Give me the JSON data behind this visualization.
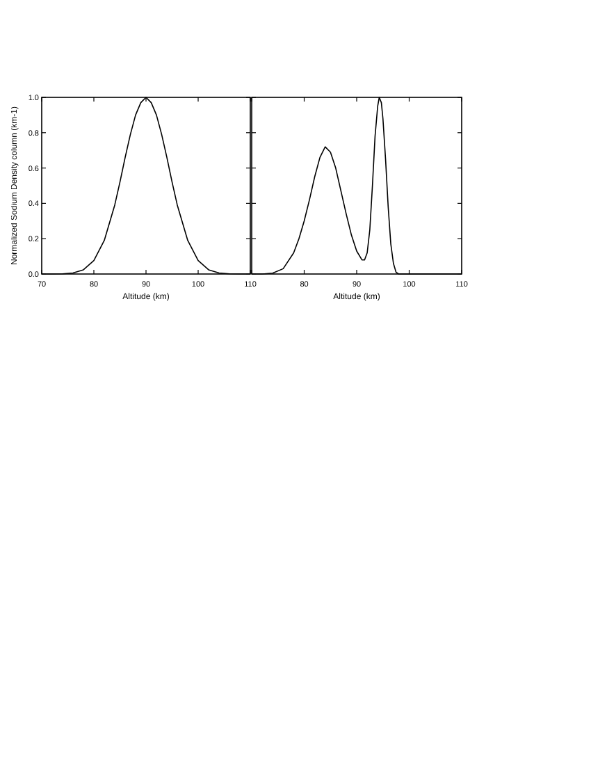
{
  "chart_data": [
    {
      "type": "line",
      "xlabel": "Altitude (km)",
      "ylabel": "Normalized Sodium Density column (km-1)",
      "xlim": [
        70,
        110
      ],
      "ylim": [
        0,
        1
      ],
      "xticks": [
        70,
        80,
        90,
        100,
        110
      ],
      "yticks": [
        {
          "value": 0,
          "label": "0.0"
        },
        0.2,
        0.4,
        0.6,
        0.8,
        {
          "value": 1,
          "label": "1.0"
        }
      ],
      "series": [
        {
          "color": "#000000",
          "x": [
            70,
            72,
            74,
            76,
            78,
            80,
            82,
            84,
            85,
            86,
            87,
            88,
            89,
            90,
            91,
            92,
            93,
            94,
            95,
            96,
            98,
            100,
            102,
            104,
            106,
            108,
            110
          ],
          "values": [
            0,
            0,
            0.001,
            0.006,
            0.024,
            0.076,
            0.19,
            0.39,
            0.52,
            0.66,
            0.79,
            0.9,
            0.97,
            1,
            0.97,
            0.9,
            0.79,
            0.66,
            0.52,
            0.39,
            0.19,
            0.076,
            0.024,
            0.006,
            0.001,
            0,
            0
          ]
        }
      ]
    },
    {
      "type": "line",
      "xlabel": "Altitude (km)",
      "xlim": [
        70,
        110
      ],
      "ylim": [
        0,
        1
      ],
      "xticks": [
        {
          "value": 70,
          "label": null
        },
        80,
        90,
        100,
        110
      ],
      "yticks": [
        {
          "value": 0,
          "label": null
        },
        {
          "value": 0.2,
          "label": null
        },
        {
          "value": 0.4,
          "label": null
        },
        {
          "value": 0.6,
          "label": null
        },
        {
          "value": 0.8,
          "label": null
        },
        {
          "value": 1,
          "label": null
        }
      ],
      "tick_labels": "x",
      "series": [
        {
          "color": "#000000",
          "x": [
            70,
            72,
            74,
            76,
            78,
            79,
            80,
            81,
            82,
            83,
            84,
            85,
            86,
            87,
            88,
            89,
            90,
            91,
            91.5,
            92,
            92.5,
            93,
            93.5,
            94,
            94.3,
            94.7,
            95,
            95.5,
            96,
            96.5,
            97,
            97.5,
            98,
            100,
            110
          ],
          "values": [
            0,
            0,
            0.005,
            0.03,
            0.12,
            0.2,
            0.3,
            0.42,
            0.55,
            0.66,
            0.72,
            0.69,
            0.6,
            0.47,
            0.34,
            0.22,
            0.13,
            0.08,
            0.08,
            0.12,
            0.25,
            0.5,
            0.78,
            0.95,
            1,
            0.97,
            0.88,
            0.65,
            0.38,
            0.17,
            0.06,
            0.01,
            0,
            0,
            0
          ]
        }
      ]
    }
  ]
}
